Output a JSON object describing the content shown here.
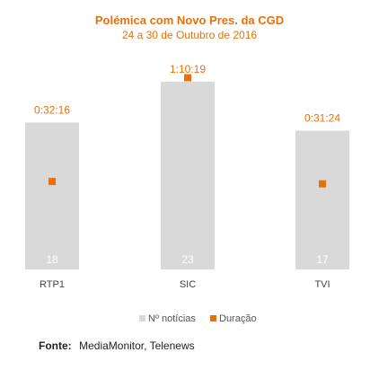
{
  "colors": {
    "count_bar": "#d9d9d9",
    "duration_marker": "#e8700a",
    "title": "#e8700a"
  },
  "source": {
    "label": "Fonte:",
    "value": "MediaMonitor, Telenews"
  },
  "chart_data": {
    "type": "bar",
    "title": "Polémica com Novo Pres. da CGD",
    "subtitle": "24 a 30 de Outubro de 2016",
    "categories": [
      "RTP1",
      "SIC",
      "TVI"
    ],
    "series": [
      {
        "name": "Nº notícias",
        "type": "bar",
        "values": [
          18,
          23,
          17
        ]
      },
      {
        "name": "Duração",
        "type": "scatter",
        "values": [
          1936,
          4219,
          1884
        ],
        "labels": [
          "0:32:16",
          "1:10:19",
          "0:31:24"
        ]
      }
    ],
    "ylim_count": [
      0,
      23
    ],
    "ylim_duration": [
      0,
      5100
    ],
    "legend_position": "bottom",
    "grid": false
  }
}
